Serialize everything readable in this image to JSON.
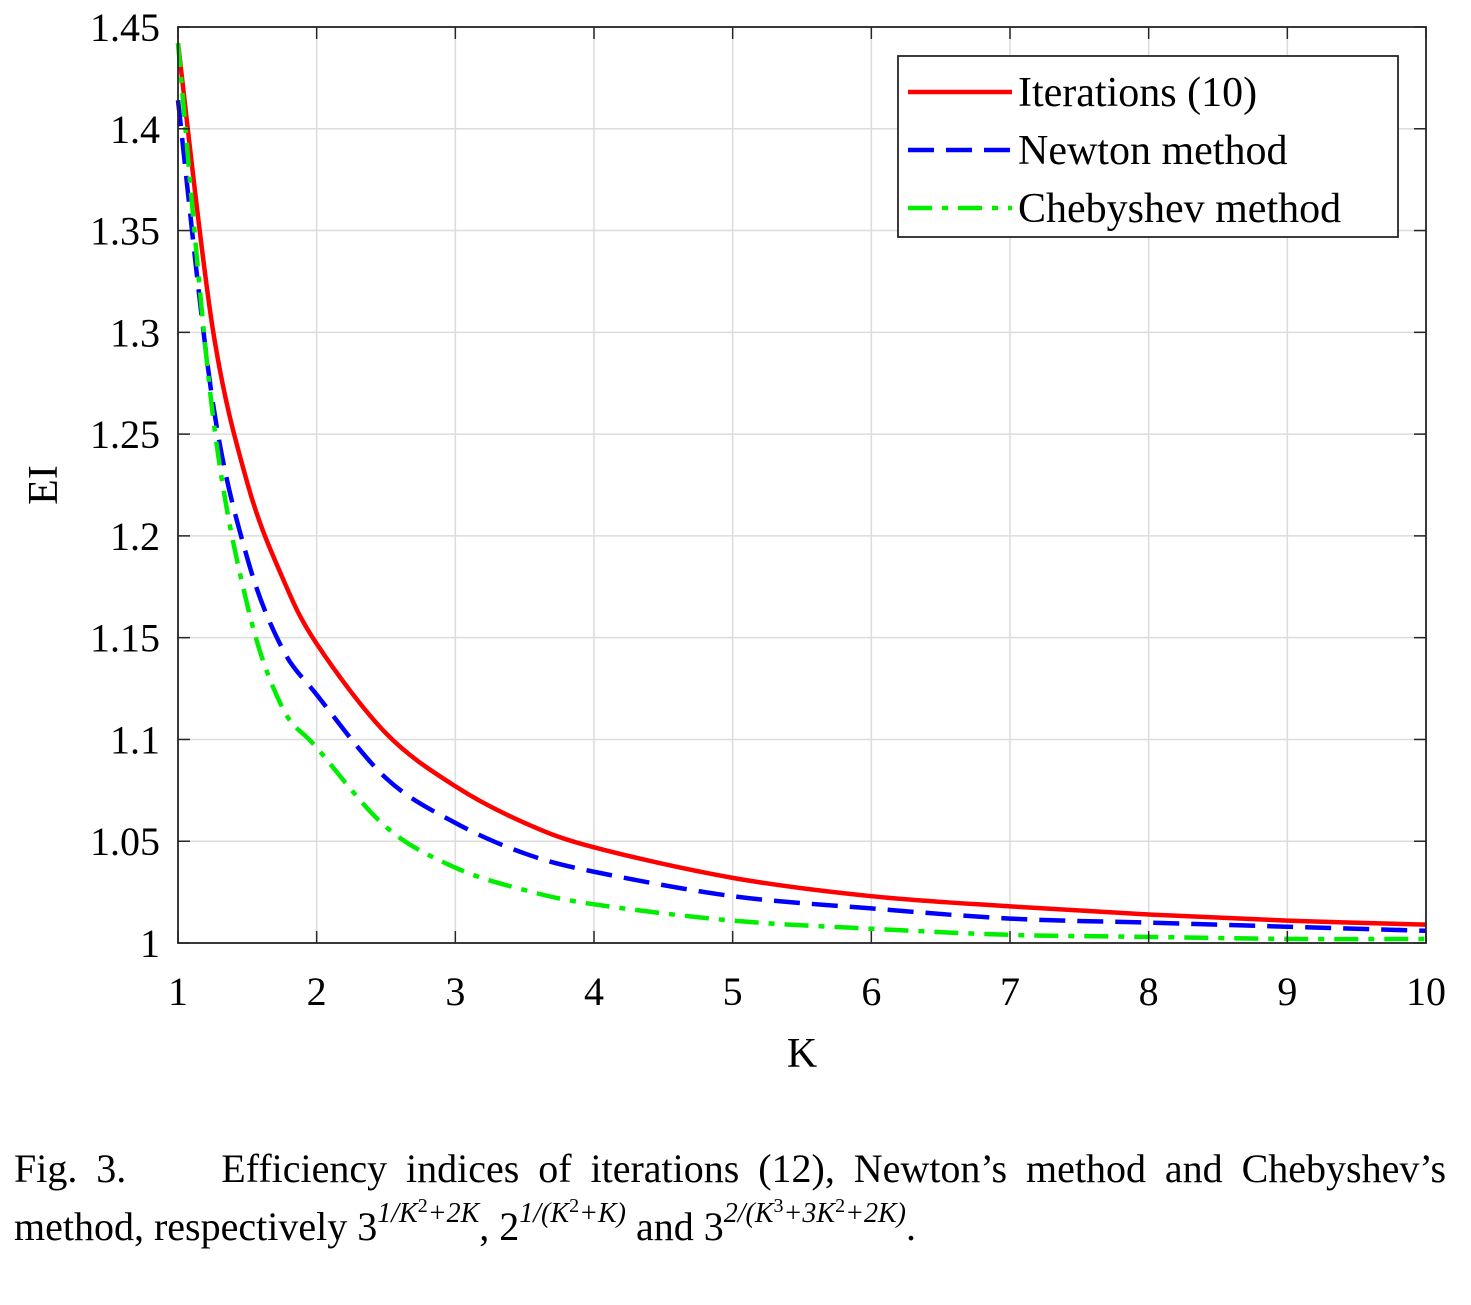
{
  "chart_data": {
    "type": "line",
    "xlabel": "K",
    "ylabel": "EI",
    "xlim": [
      1,
      10
    ],
    "ylim": [
      1,
      1.45
    ],
    "xticks": [
      "1",
      "2",
      "3",
      "4",
      "5",
      "6",
      "7",
      "8",
      "9",
      "10"
    ],
    "yticks": [
      "1",
      "1.05",
      "1.1",
      "1.15",
      "1.2",
      "1.25",
      "1.3",
      "1.35",
      "1.4",
      "1.45"
    ],
    "grid": true,
    "legend_position": "top-right",
    "series": [
      {
        "name": "Iterations (10)",
        "color": "#ff0000",
        "style": "solid",
        "x": [
          1,
          1.25,
          1.5,
          1.75,
          2,
          2.5,
          3,
          3.5,
          4,
          5,
          6,
          7,
          8,
          9,
          10
        ],
        "y": [
          1.442,
          1.302,
          1.226,
          1.18,
          1.147,
          1.103,
          1.077,
          1.059,
          1.047,
          1.032,
          1.023,
          1.018,
          1.014,
          1.011,
          1.009
        ]
      },
      {
        "name": "Newton method",
        "color": "#0000ff",
        "style": "dashed",
        "x": [
          1,
          1.25,
          1.5,
          1.75,
          2,
          2.5,
          3,
          3.5,
          4,
          5,
          6,
          7,
          8,
          9,
          10
        ],
        "y": [
          1.414,
          1.266,
          1.189,
          1.145,
          1.122,
          1.081,
          1.059,
          1.044,
          1.035,
          1.023,
          1.017,
          1.012,
          1.01,
          1.008,
          1.006
        ]
      },
      {
        "name": "Chebyshev method",
        "color": "#00ee00",
        "style": "dashdot",
        "x": [
          1,
          1.25,
          1.5,
          1.75,
          2,
          2.5,
          3,
          3.5,
          4,
          5,
          6,
          7,
          8,
          9,
          10
        ],
        "y": [
          1.442,
          1.26,
          1.166,
          1.116,
          1.096,
          1.057,
          1.037,
          1.026,
          1.019,
          1.011,
          1.007,
          1.004,
          1.003,
          1.002,
          1.002
        ]
      }
    ]
  },
  "caption": {
    "fig_label": "Fig. 3.",
    "text_before": "Efficiency indices of iterations (12), Newton’s method and Chebyshev’s method, respectively ",
    "term1_base": "3",
    "term1_exp": "1/K",
    "term1_exp_pow": "2",
    "term1_exp_tail": "+2K",
    "sep1": ", ",
    "term2_base": "2",
    "term2_exp": "1/(K",
    "term2_exp_pow": "2",
    "term2_exp_tail": "+K)",
    "sep2": " and ",
    "term3_base": "3",
    "term3_exp": "2/(K",
    "term3_exp_pow1": "3",
    "term3_exp_mid": "+3K",
    "term3_exp_pow2": "2",
    "term3_exp_tail": "+2K)",
    "end": "."
  }
}
